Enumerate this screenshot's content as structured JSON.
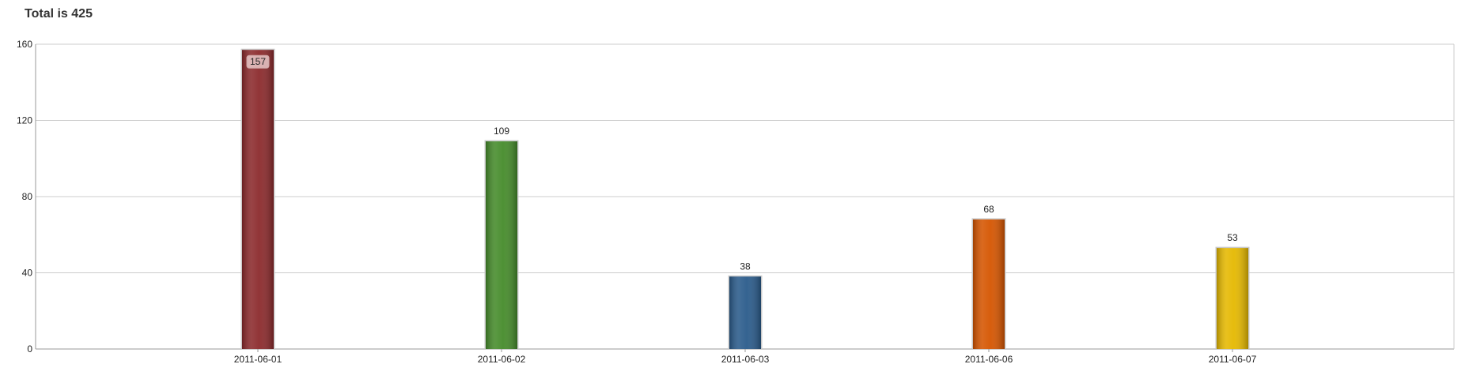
{
  "chart_data": {
    "type": "bar",
    "title": "Total is 425",
    "categories": [
      "2011-06-01",
      "2011-06-02",
      "2011-06-03",
      "2011-06-06",
      "2011-06-07"
    ],
    "values": [
      157,
      109,
      38,
      68,
      53
    ],
    "colors": [
      "#8b2a2c",
      "#458b2a",
      "#2a5b8b",
      "#d55500",
      "#e5b800"
    ],
    "xlabel": "",
    "ylabel": "",
    "ylim": [
      0,
      160
    ],
    "yticks": [
      0,
      40,
      80,
      120,
      160
    ],
    "grid": true,
    "legend": "none"
  }
}
